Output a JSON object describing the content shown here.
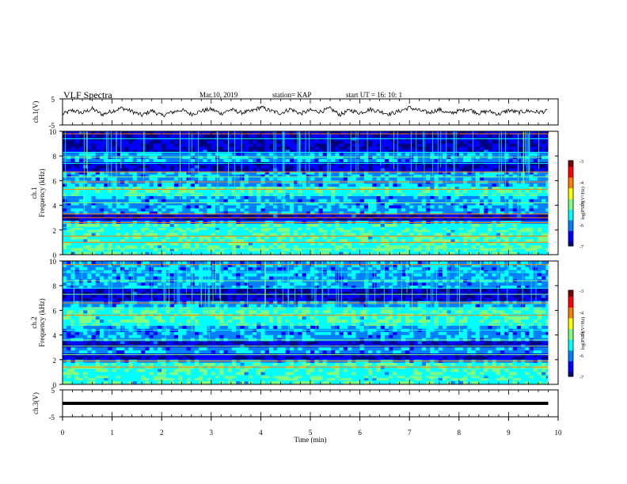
{
  "header": {
    "title": "VLF Spectra",
    "date": "Mar.10, 2019",
    "station": "station= KAP",
    "start": "start  UT =   16: 10: 1"
  },
  "chart_data": [
    {
      "type": "line",
      "name": "waveform-ch1",
      "ylabel": "ch.1(V)",
      "xlim": [
        0,
        10
      ],
      "ylim": [
        -5,
        5
      ],
      "yticks": [
        "5",
        "-5"
      ],
      "x": [
        0.0,
        0.2,
        0.4,
        0.6,
        0.8,
        1.0,
        1.2,
        1.4,
        1.6,
        1.8,
        2.0,
        2.2,
        2.4,
        2.6,
        2.8,
        3.0,
        3.2,
        3.4,
        3.6,
        3.8,
        4.0,
        4.2,
        4.4,
        4.6,
        4.8,
        5.0,
        5.2,
        5.4,
        5.6,
        5.8,
        6.0,
        6.2,
        6.4,
        6.6,
        6.8,
        7.0,
        7.2,
        7.4,
        7.6,
        7.8,
        8.0,
        8.2,
        8.4,
        8.6,
        8.8,
        9.0,
        9.2,
        9.4,
        9.6,
        9.8
      ],
      "y": [
        -0.8,
        0.6,
        -0.4,
        1.2,
        -1.0,
        0.3,
        1.5,
        0.2,
        -1.3,
        0.5,
        -1.4,
        -0.2,
        0.8,
        -0.9,
        0.4,
        1.0,
        -0.6,
        0.9,
        -0.3,
        0.2,
        1.8,
        0.4,
        -0.5,
        1.1,
        -0.7,
        0.6,
        0.1,
        1.3,
        -1.1,
        0.7,
        -0.4,
        1.0,
        0.2,
        -0.8,
        0.3,
        1.7,
        0.5,
        -0.3,
        0.9,
        -0.6,
        0.4,
        1.0,
        -0.5,
        0.3,
        -0.9,
        0.6,
        -0.2,
        0.4,
        -0.1,
        0.3
      ]
    },
    {
      "type": "heatmap",
      "name": "spectrogram-ch1",
      "ylabel": "ch.1",
      "ylabel2": "Frequency (kHz)",
      "xlim": [
        0,
        10
      ],
      "ylim": [
        0,
        10
      ],
      "yticks": [
        "0",
        "2",
        "4",
        "6",
        "8",
        "10"
      ],
      "colorbar": {
        "label": "log(PSD)(V²/Hz)",
        "range": [
          -7,
          -3
        ],
        "ticks": [
          "-3",
          "-4",
          "-5",
          "-6",
          "-7"
        ]
      },
      "band_freqs_khz": [
        0.25,
        0.5,
        1.0,
        1.5,
        1.8,
        2.2,
        2.6,
        3.0,
        3.3,
        4.2,
        4.9,
        5.3,
        5.9,
        6.3,
        6.7,
        7.4,
        7.9,
        8.3,
        9.4,
        9.8
      ],
      "dark_band_khz": [
        [
          2.7,
          3.3
        ],
        [
          6.8,
          7.6
        ],
        [
          8.3,
          10.0
        ]
      ],
      "bright_band_khz": [
        [
          0.0,
          2.4
        ],
        [
          4.8,
          5.6
        ]
      ]
    },
    {
      "type": "heatmap",
      "name": "spectrogram-ch2",
      "ylabel": "ch.2",
      "ylabel2": "Frequency (kHz)",
      "xlim": [
        0,
        10
      ],
      "ylim": [
        0,
        10
      ],
      "yticks": [
        "0",
        "2",
        "4",
        "6",
        "8",
        "10"
      ],
      "colorbar": {
        "label": "log(PSD)(V²/Hz)",
        "range": [
          -7,
          -3
        ],
        "ticks": [
          "-3",
          "-4",
          "-5",
          "-6",
          "-7"
        ]
      },
      "band_freqs_khz": [
        0.3,
        0.7,
        1.4,
        1.9,
        2.4,
        3.1,
        3.6,
        4.4,
        4.9,
        5.6,
        6.1,
        6.6,
        7.3,
        7.8,
        8.4,
        9.1,
        9.7
      ],
      "dark_band_khz": [
        [
          1.9,
          2.5
        ],
        [
          3.0,
          3.6
        ],
        [
          6.7,
          7.8
        ]
      ],
      "bright_band_khz": [
        [
          0.0,
          1.8
        ],
        [
          4.8,
          6.2
        ]
      ]
    },
    {
      "type": "line",
      "name": "waveform-ch3",
      "ylabel": "ch.3(V)",
      "xlabel": "Time (min)",
      "xlim": [
        0,
        10
      ],
      "ylim": [
        -5,
        5
      ],
      "yticks": [
        "5",
        "-5"
      ],
      "xticks": [
        "0",
        "1",
        "2",
        "3",
        "4",
        "5",
        "6",
        "7",
        "8",
        "9",
        "10"
      ],
      "x": [
        0.0,
        9.8
      ],
      "y": [
        0.0,
        0.0
      ]
    }
  ],
  "colors": {
    "axis": "#000000",
    "trace": "#000000",
    "colormap": [
      "#00007f",
      "#0000ff",
      "#0080ff",
      "#00ffff",
      "#80ff80",
      "#ffff00",
      "#ff8000",
      "#ff0000",
      "#7f0000"
    ]
  }
}
